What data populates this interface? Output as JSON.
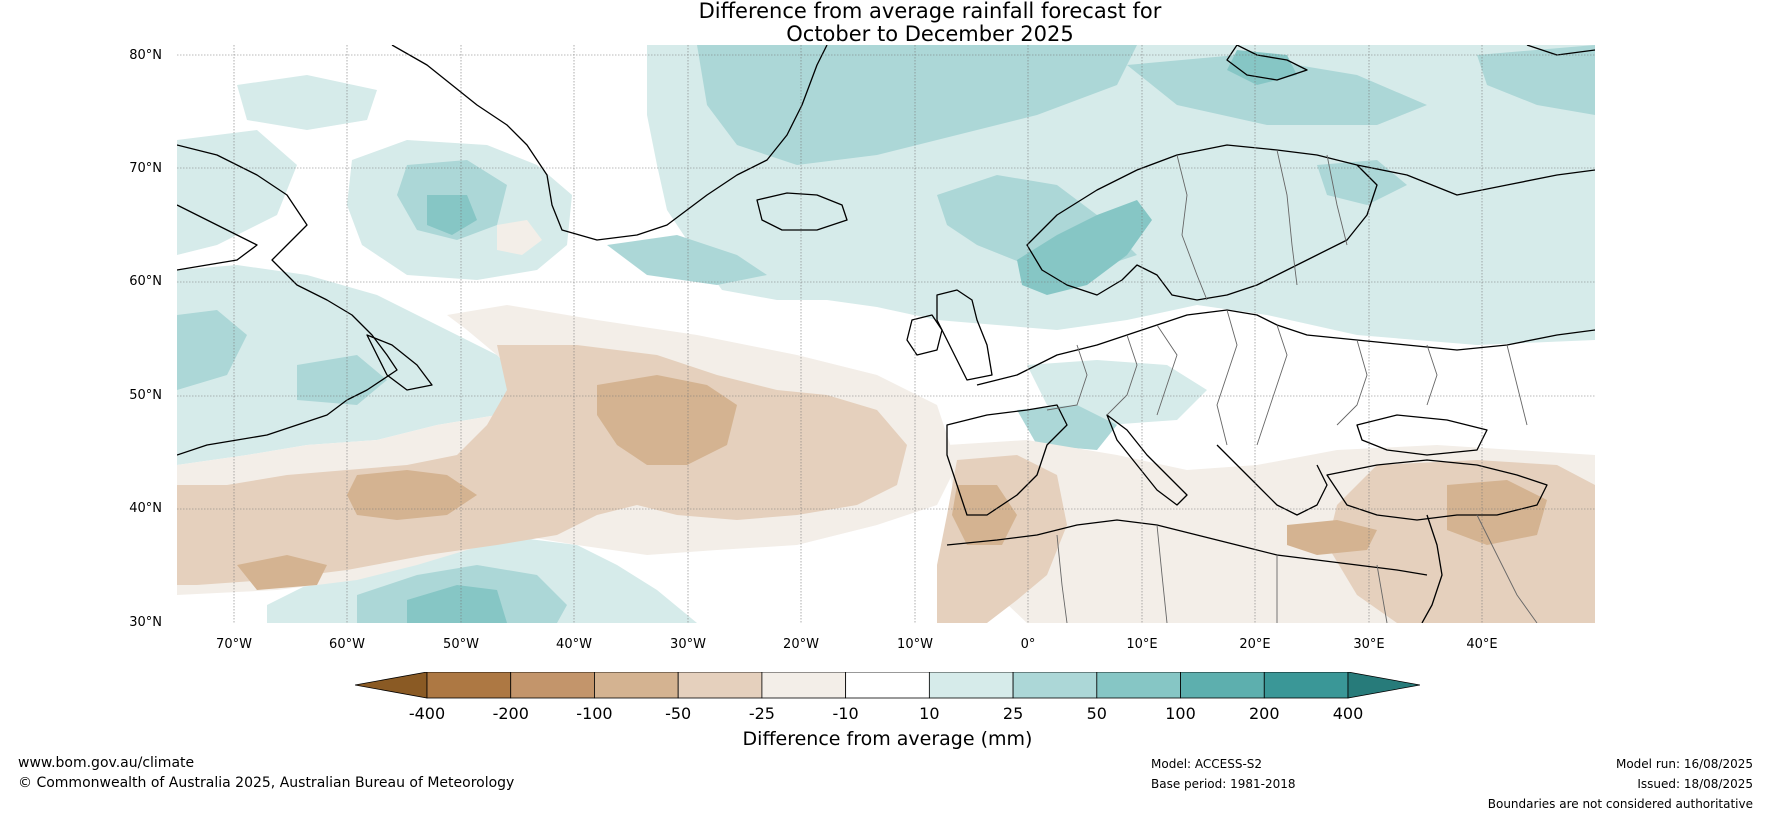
{
  "title": {
    "line1": "Difference from average rainfall forecast for",
    "line2": "October to December 2025"
  },
  "map": {
    "lat_labels": [
      "80°N",
      "70°N",
      "60°N",
      "50°N",
      "40°N",
      "30°N"
    ],
    "lon_labels": [
      "70°W",
      "60°W",
      "50°W",
      "40°W",
      "30°W",
      "20°W",
      "10°W",
      "0°",
      "10°E",
      "20°E",
      "30°E",
      "40°E"
    ],
    "extent": {
      "lon_min": -75,
      "lon_max": 50,
      "lat_min": 30,
      "lat_max": 81
    }
  },
  "colorbar": {
    "ticks": [
      "-400",
      "-200",
      "-100",
      "-50",
      "-25",
      "-10",
      "10",
      "25",
      "50",
      "100",
      "200",
      "400"
    ],
    "colors": [
      "#8a5a24",
      "#ad7843",
      "#c3956b",
      "#d4b391",
      "#e5d0bd",
      "#f3eee8",
      "#ffffff",
      "#d6ebea",
      "#acd7d7",
      "#86c6c5",
      "#5dafae",
      "#3a9797",
      "#277b7a"
    ],
    "label": "Difference from average (mm)"
  },
  "footer": {
    "website": "www.bom.gov.au/climate",
    "copyright": "© Commonwealth of Australia 2025, Australian Bureau of Meteorology",
    "model": "Model: ACCESS-S2",
    "base_period": "Base period: 1981-2018",
    "model_run": "Model run: 16/08/2025",
    "issued": "Issued: 18/08/2025",
    "disclaimer": "Boundaries are not considered authoritative"
  }
}
